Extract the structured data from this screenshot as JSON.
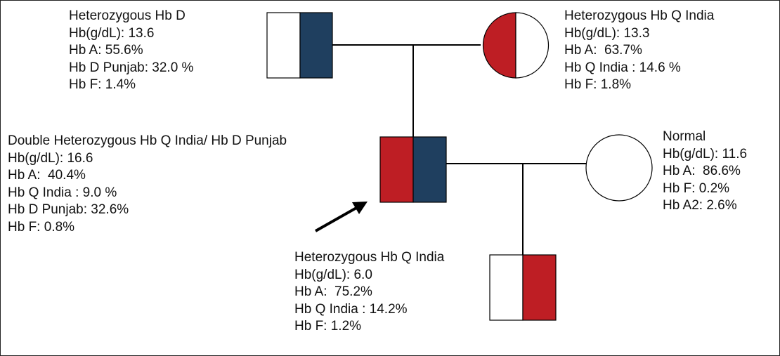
{
  "colors": {
    "hb_q_india": "#be1e24",
    "hb_d_punjab": "#1f3f5f",
    "line": "#000000"
  },
  "individuals": {
    "father": {
      "title": "Heterozygous Hb D",
      "lines": [
        "Hb(g/dL): 13.6",
        "Hb A: 55.6%",
        "Hb D Punjab: 32.0 %",
        "Hb F: 1.4%"
      ]
    },
    "mother": {
      "title": "Heterozygous Hb Q India",
      "lines": [
        "Hb(g/dL): 13.3",
        "Hb A:  63.7%",
        "Hb Q India : 14.6 %",
        "Hb F: 1.8%"
      ]
    },
    "proband": {
      "title": "Double Heterozygous Hb Q India/ Hb D Punjab",
      "lines": [
        "Hb(g/dL): 16.6",
        "Hb A:  40.4%",
        "Hb Q India : 9.0 %",
        "Hb D Punjab: 32.6%",
        "Hb F: 0.8%"
      ]
    },
    "wife": {
      "title": "Normal",
      "lines": [
        "Hb(g/dL): 11.6",
        "Hb A:  86.6%",
        "Hb F: 0.2%",
        "Hb A2: 2.6%"
      ]
    },
    "child": {
      "title": "Heterozygous Hb Q India",
      "lines": [
        "Hb(g/dL): 6.0",
        "Hb A:  75.2%",
        "Hb Q India : 14.2%",
        "Hb F: 1.2%"
      ]
    }
  }
}
